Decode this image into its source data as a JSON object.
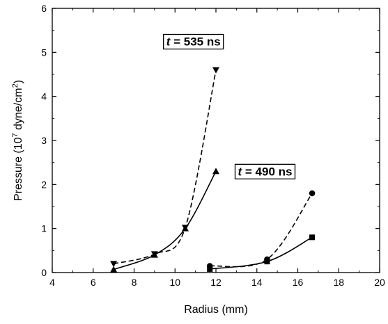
{
  "chart_data": {
    "type": "scatter",
    "title": "",
    "xlabel": "Radius (mm)",
    "ylabel": {
      "prefix": "Pressure (10",
      "exp": "7",
      "mid": " dyne/cm",
      "exp2": "2",
      "suffix": ")"
    },
    "xlim": [
      4,
      20
    ],
    "ylim": [
      0,
      6
    ],
    "xticks": [
      4,
      6,
      8,
      10,
      12,
      14,
      16,
      18,
      20
    ],
    "yticks": [
      0,
      1,
      2,
      3,
      4,
      5,
      6
    ],
    "grid": false,
    "legend": "none",
    "annotations": [
      {
        "var": "t",
        "text": " = 535 ns",
        "x": 10.9,
        "y": 5.25
      },
      {
        "var": "t",
        "text": " = 490 ns",
        "x": 14.4,
        "y": 2.3
      }
    ],
    "series": [
      {
        "marker": "triangle-down",
        "line": "dashed",
        "x": [
          7.0,
          9.0,
          10.5,
          12.0
        ],
        "y": [
          0.2,
          0.42,
          1.02,
          4.6
        ]
      },
      {
        "marker": "triangle-up",
        "line": "solid",
        "x": [
          7.0,
          9.0,
          10.5,
          12.0
        ],
        "y": [
          0.07,
          0.4,
          1.0,
          2.3
        ]
      },
      {
        "marker": "circle",
        "line": "dashed",
        "x": [
          11.7,
          14.5,
          16.7
        ],
        "y": [
          0.15,
          0.3,
          1.8
        ]
      },
      {
        "marker": "square",
        "line": "solid",
        "x": [
          11.7,
          14.5,
          16.7
        ],
        "y": [
          0.08,
          0.25,
          0.8
        ]
      }
    ],
    "colors": {
      "ink": "#000000",
      "background": "#ffffff"
    }
  }
}
